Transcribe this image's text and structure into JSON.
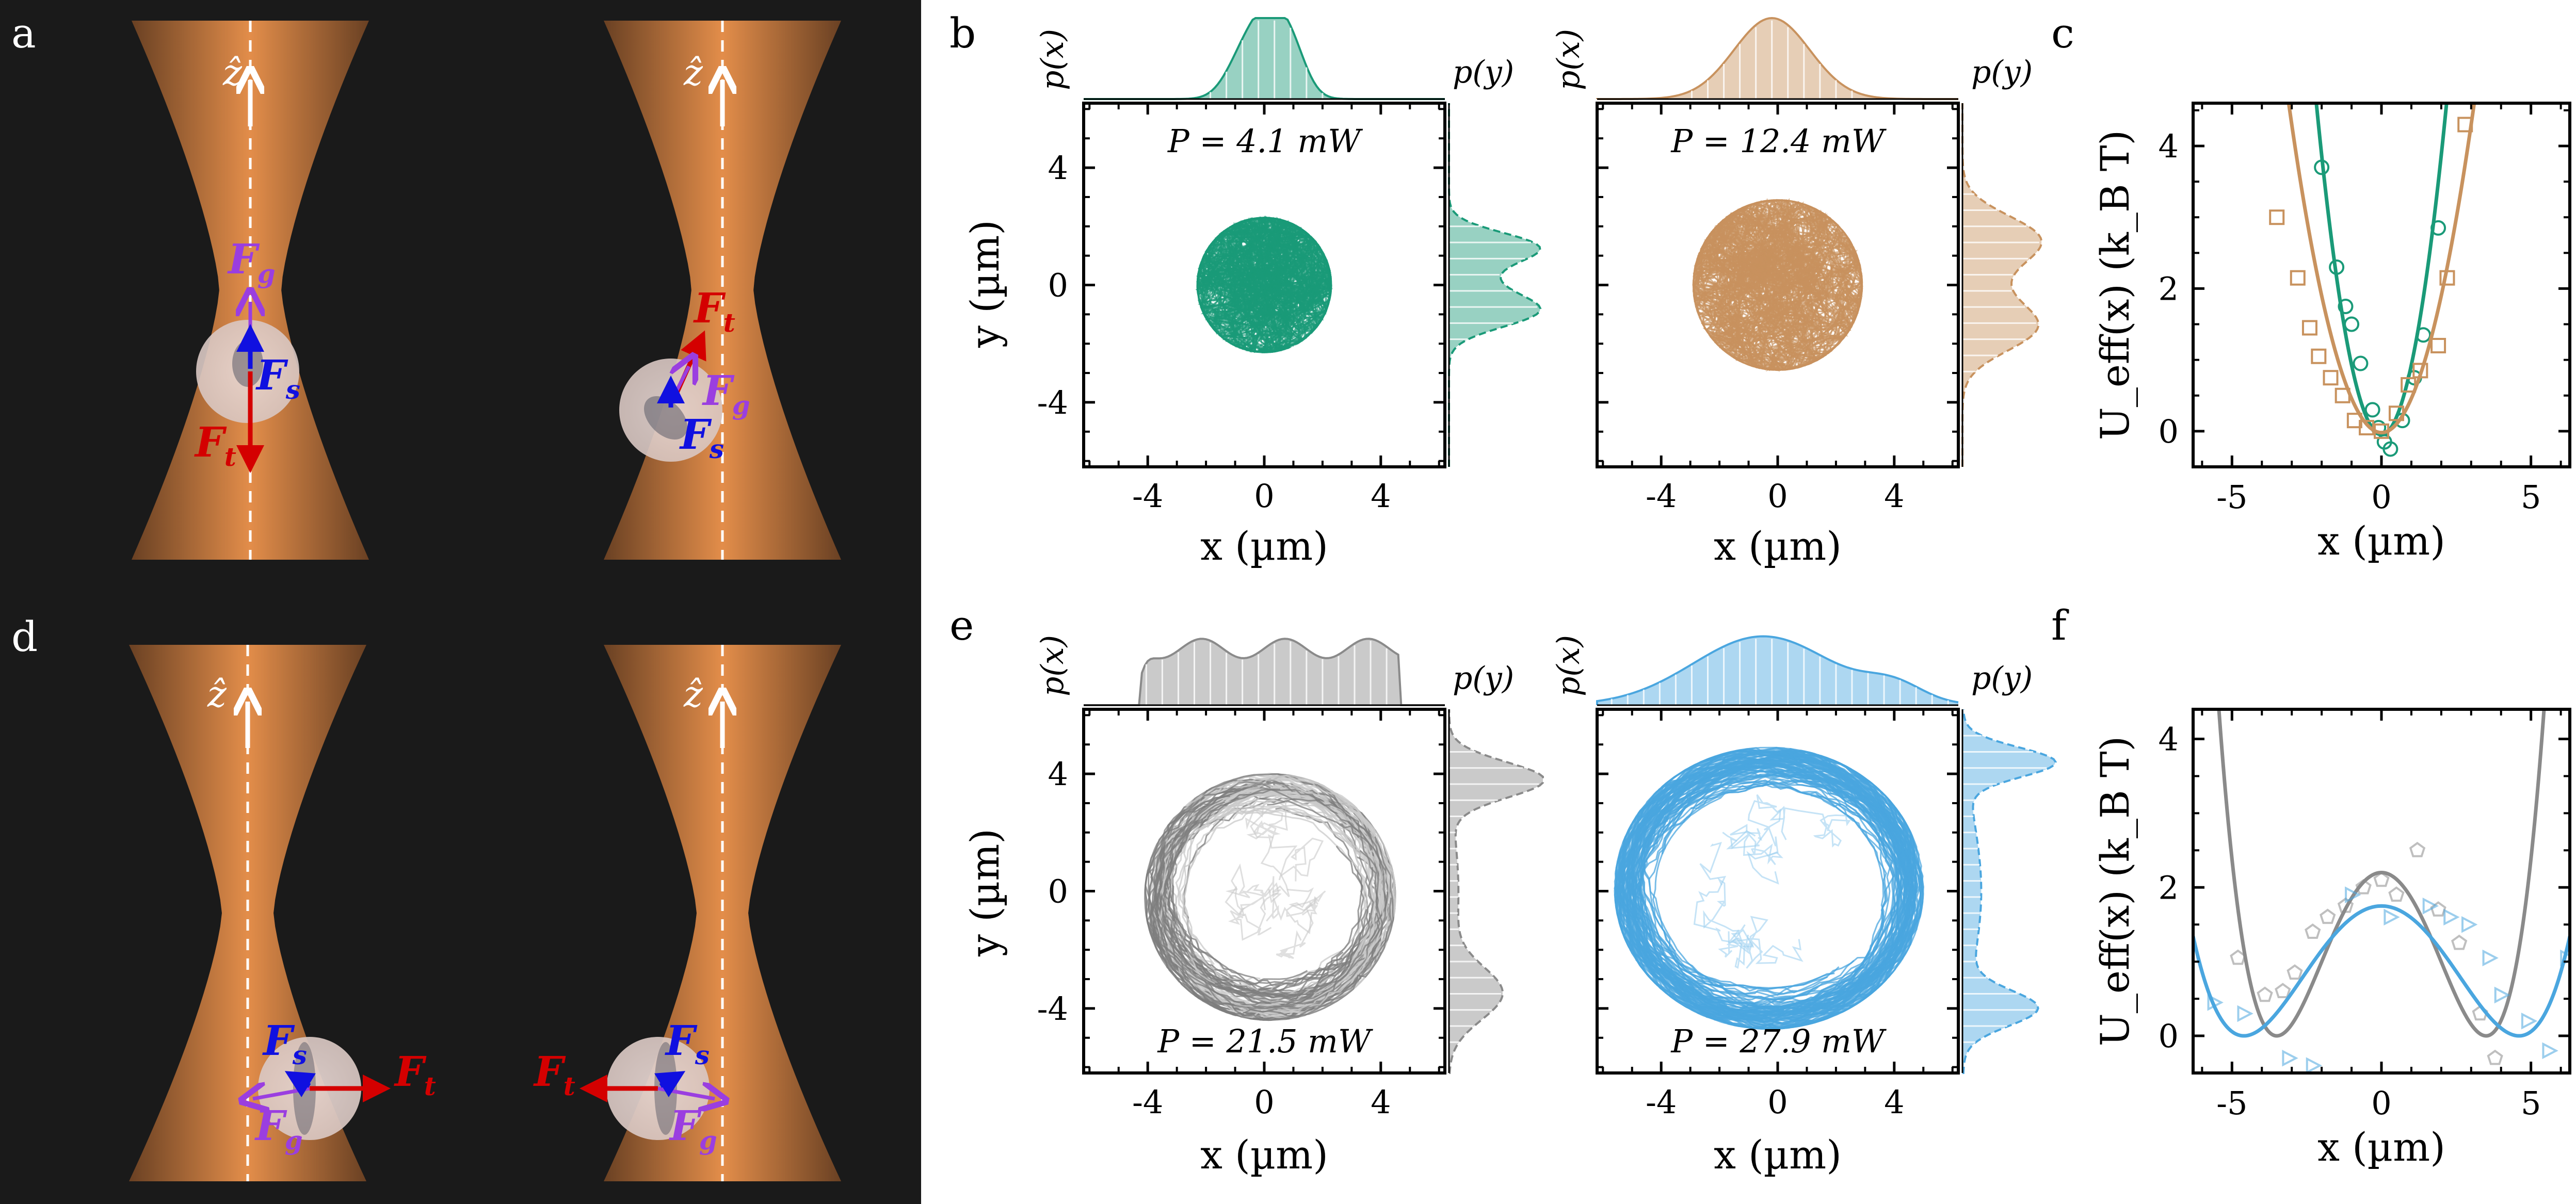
{
  "panel_letters": {
    "a": "a",
    "b": "b",
    "c": "c",
    "d": "d",
    "e": "e",
    "f": "f"
  },
  "colors": {
    "background_dark": "#1a1a1a",
    "beam_orange": "#e08a48",
    "green": "#1a9a78",
    "tan": "#c8925e",
    "gray": "#8a8a8a",
    "blue": "#4aa6df",
    "force_red": "#d40000",
    "force_blue": "#1010e0",
    "force_purple": "#9a3ee0"
  },
  "schematics": {
    "z_label": "ẑ",
    "F_symbol": "F",
    "sub_g": "g",
    "sub_s": "s",
    "sub_t": "t"
  },
  "panel_b": {
    "left": {
      "power": "P = 4.1 mW",
      "px_label": "p(x)",
      "py_label": "p(y)"
    },
    "right": {
      "power": "P = 12.4 mW",
      "px_label": "p(x)",
      "py_label": "p(y)"
    },
    "xlabel": "x (µm)",
    "ylabel": "y (µm)",
    "xticks": [
      "-4",
      "0",
      "4"
    ],
    "yticks": [
      "4",
      "0",
      "-4"
    ]
  },
  "panel_e": {
    "left": {
      "power": "P = 21.5 mW",
      "px_label": "p(x)",
      "py_label": "p(y)"
    },
    "right": {
      "power": "P = 27.9 mW",
      "px_label": "p(x)",
      "py_label": "p(y)"
    },
    "xlabel": "x (µm)",
    "ylabel": "y (µm)",
    "xticks": [
      "-4",
      "0",
      "4"
    ],
    "yticks": [
      "4",
      "0",
      "-4"
    ]
  },
  "chart_data": [
    {
      "panel": "c",
      "type": "scatter",
      "xlabel": "x (µm)",
      "ylabel": "U_eff(x) (k_B T)",
      "xlim": [
        -6.3,
        6.3
      ],
      "ylim": [
        -0.5,
        4.6
      ],
      "xticks": [
        -5,
        0,
        5
      ],
      "yticks": [
        0,
        2,
        4
      ],
      "series": [
        {
          "color": "#1a9a78",
          "marker": "circle",
          "points": [
            [
              -2.0,
              3.7
            ],
            [
              -1.5,
              2.3
            ],
            [
              -1.2,
              1.75
            ],
            [
              -1.0,
              1.5
            ],
            [
              -0.7,
              0.95
            ],
            [
              -0.3,
              0.3
            ],
            [
              -0.1,
              0.05
            ],
            [
              0.1,
              -0.15
            ],
            [
              0.3,
              -0.25
            ],
            [
              0.7,
              0.15
            ],
            [
              1.1,
              0.75
            ],
            [
              1.4,
              1.35
            ],
            [
              1.9,
              2.85
            ]
          ],
          "fit": {
            "a": 0.98,
            "x0": 0.0,
            "c": -0.05
          }
        },
        {
          "color": "#c8925e",
          "marker": "square",
          "points": [
            [
              -3.5,
              3.0
            ],
            [
              -2.8,
              2.15
            ],
            [
              -2.4,
              1.45
            ],
            [
              -2.1,
              1.05
            ],
            [
              -1.7,
              0.75
            ],
            [
              -1.3,
              0.5
            ],
            [
              -0.9,
              0.15
            ],
            [
              -0.5,
              0.05
            ],
            [
              0.0,
              0.0
            ],
            [
              0.5,
              0.25
            ],
            [
              0.9,
              0.65
            ],
            [
              1.3,
              0.85
            ],
            [
              1.9,
              1.2
            ],
            [
              2.2,
              2.15
            ],
            [
              2.8,
              4.3
            ]
          ],
          "fit": {
            "a": 0.48,
            "x0": 0.0,
            "c": -0.02
          }
        }
      ]
    },
    {
      "panel": "f",
      "type": "scatter",
      "xlabel": "x (µm)",
      "ylabel": "U_eff(x) (k_B T)",
      "xlim": [
        -6.3,
        6.3
      ],
      "ylim": [
        -0.5,
        4.4
      ],
      "xticks": [
        -5,
        0,
        5
      ],
      "yticks": [
        0,
        2,
        4
      ],
      "series": [
        {
          "color": "#8a8a8a",
          "marker": "pentagon",
          "points": [
            [
              -4.8,
              1.05
            ],
            [
              -3.9,
              0.55
            ],
            [
              -3.3,
              0.6
            ],
            [
              -2.9,
              0.85
            ],
            [
              -2.3,
              1.4
            ],
            [
              -1.8,
              1.6
            ],
            [
              -1.2,
              1.75
            ],
            [
              -0.6,
              2.0
            ],
            [
              0.0,
              2.1
            ],
            [
              0.5,
              1.9
            ],
            [
              1.2,
              2.5
            ],
            [
              1.9,
              1.7
            ],
            [
              2.6,
              1.25
            ],
            [
              3.3,
              0.3
            ],
            [
              3.8,
              -0.3
            ]
          ],
          "fit": {
            "type": "double_well",
            "depth": 2.2,
            "x0": 3.5
          }
        },
        {
          "color": "#4aa6df",
          "marker": "triangle-right",
          "points": [
            [
              -5.6,
              0.45
            ],
            [
              -4.6,
              0.3
            ],
            [
              -3.1,
              -0.3
            ],
            [
              -2.3,
              -0.4
            ],
            [
              -1.0,
              1.9
            ],
            [
              0.3,
              1.6
            ],
            [
              1.6,
              1.75
            ],
            [
              2.3,
              1.6
            ],
            [
              2.9,
              1.5
            ],
            [
              3.6,
              1.05
            ],
            [
              4.0,
              0.55
            ],
            [
              4.9,
              0.2
            ],
            [
              5.6,
              -0.2
            ],
            [
              6.2,
              1.05
            ]
          ],
          "fit": {
            "type": "double_well",
            "depth": 1.75,
            "x0": 4.6
          }
        }
      ]
    }
  ]
}
